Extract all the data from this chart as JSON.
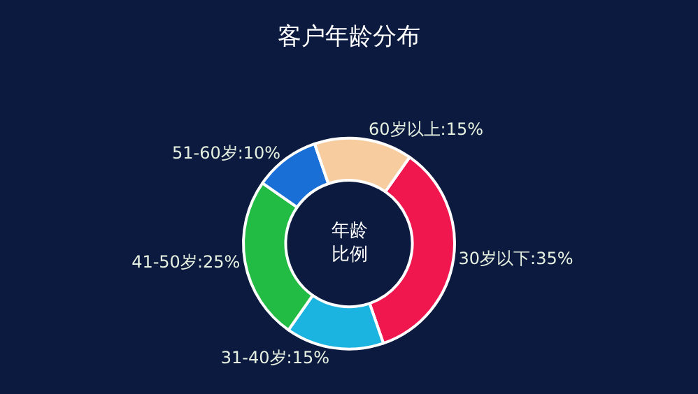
{
  "chart_data": {
    "type": "donut",
    "title": "客户年龄分布",
    "categories": [
      "30岁以下",
      "31-40岁",
      "41-50岁",
      "51-60岁",
      "60岁以上"
    ],
    "values": [
      35,
      15,
      25,
      10,
      15
    ],
    "colors": [
      "#f0174f",
      "#1bb3e0",
      "#22bb44",
      "#1a6fd6",
      "#f7cda0"
    ],
    "value_labels": [
      "35%",
      "15%",
      "25%",
      "10%",
      "15%"
    ],
    "annotations": [
      "年龄比例"
    ]
  }
}
